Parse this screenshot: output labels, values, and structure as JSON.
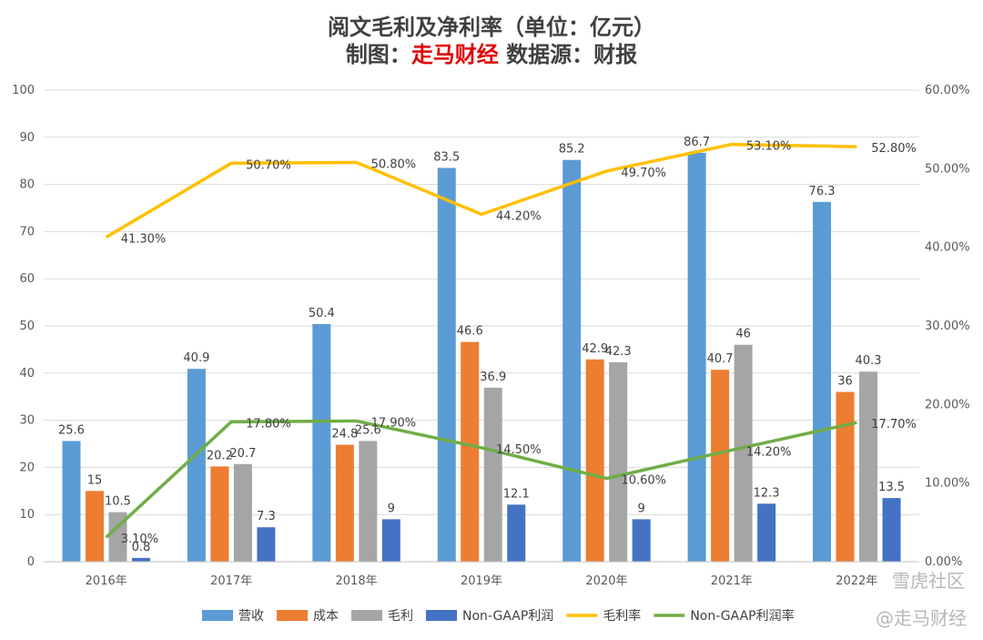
{
  "chart_data": {
    "type": "bar+line",
    "title_line1": "阅文毛利及净利率（单位：亿元）",
    "title_line2_prefix": "制图：",
    "title_line2_brand": "走马财经",
    "title_line2_suffix": "  数据源：财报",
    "categories": [
      "2016年",
      "2017年",
      "2018年",
      "2019年",
      "2020年",
      "2021年",
      "2022年"
    ],
    "y_left": {
      "min": 0,
      "max": 100,
      "step": 10
    },
    "y_right": {
      "min": 0,
      "max": 60,
      "step": 10,
      "ticks": [
        "0.00%",
        "10.00%",
        "20.00%",
        "30.00%",
        "40.00%",
        "50.00%",
        "60.00%"
      ]
    },
    "bar_series": [
      {
        "name": "营收",
        "color": "#5b9bd5",
        "values": [
          25.6,
          40.9,
          50.4,
          83.5,
          85.2,
          86.7,
          76.3
        ],
        "labels": [
          "25.6",
          "40.9",
          "50.4",
          "83.5",
          "85.2",
          "86.7",
          "76.3"
        ]
      },
      {
        "name": "成本",
        "color": "#ed7d31",
        "values": [
          15,
          20.2,
          24.8,
          46.6,
          42.9,
          40.7,
          36
        ],
        "labels": [
          "15",
          "20.2",
          "24.8",
          "46.6",
          "42.9",
          "40.7",
          "36"
        ]
      },
      {
        "name": "毛利",
        "color": "#a5a5a5",
        "values": [
          10.5,
          20.7,
          25.6,
          36.9,
          42.3,
          46,
          40.3
        ],
        "labels": [
          "10.5",
          "20.7",
          "25.6",
          "36.9",
          "42.3",
          "46",
          "40.3"
        ]
      },
      {
        "name": "Non-GAAP利润",
        "color": "#4472c4",
        "values": [
          0.8,
          7.3,
          9,
          12.1,
          9,
          12.3,
          13.5
        ],
        "labels": [
          "0.8",
          "7.3",
          "9",
          "12.1",
          "9",
          "12.3",
          "13.5"
        ]
      }
    ],
    "line_series": [
      {
        "name": "毛利率",
        "color": "#ffc000",
        "values": [
          41.3,
          50.7,
          50.8,
          44.2,
          49.7,
          53.1,
          52.8
        ],
        "labels": [
          "41.30%",
          "50.70%",
          "50.80%",
          "44.20%",
          "49.70%",
          "53.10%",
          "52.80%"
        ]
      },
      {
        "name": "Non-GAAP利润率",
        "color": "#70ad47",
        "values": [
          3.1,
          17.8,
          17.9,
          14.5,
          10.6,
          14.2,
          17.7
        ],
        "labels": [
          "3.10%",
          "17.80%",
          "17.90%",
          "14.50%",
          "10.60%",
          "14.20%",
          "17.70%"
        ]
      }
    ],
    "legend_position": "bottom"
  },
  "watermarks": {
    "top": "雪虎社区",
    "bottom": "@走马财经"
  }
}
